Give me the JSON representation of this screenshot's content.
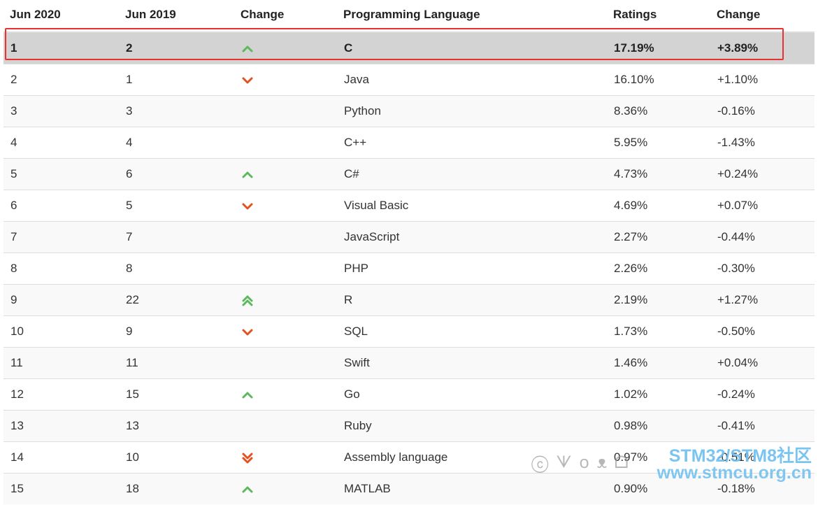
{
  "table": {
    "headers": [
      "Jun 2020",
      "Jun 2019",
      "Change",
      "Programming Language",
      "Ratings",
      "Change"
    ],
    "rows": [
      {
        "rank_2020": "1",
        "rank_2019": "2",
        "trend": "up",
        "language": "C",
        "rating": "17.19%",
        "change": "+3.89%",
        "highlighted": true
      },
      {
        "rank_2020": "2",
        "rank_2019": "1",
        "trend": "down",
        "language": "Java",
        "rating": "16.10%",
        "change": "+1.10%"
      },
      {
        "rank_2020": "3",
        "rank_2019": "3",
        "trend": "none",
        "language": "Python",
        "rating": "8.36%",
        "change": "-0.16%"
      },
      {
        "rank_2020": "4",
        "rank_2019": "4",
        "trend": "none",
        "language": "C++",
        "rating": "5.95%",
        "change": "-1.43%"
      },
      {
        "rank_2020": "5",
        "rank_2019": "6",
        "trend": "up",
        "language": "C#",
        "rating": "4.73%",
        "change": "+0.24%"
      },
      {
        "rank_2020": "6",
        "rank_2019": "5",
        "trend": "down",
        "language": "Visual Basic",
        "rating": "4.69%",
        "change": "+0.07%"
      },
      {
        "rank_2020": "7",
        "rank_2019": "7",
        "trend": "none",
        "language": "JavaScript",
        "rating": "2.27%",
        "change": "-0.44%"
      },
      {
        "rank_2020": "8",
        "rank_2019": "8",
        "trend": "none",
        "language": "PHP",
        "rating": "2.26%",
        "change": "-0.30%"
      },
      {
        "rank_2020": "9",
        "rank_2019": "22",
        "trend": "double-up",
        "language": "R",
        "rating": "2.19%",
        "change": "+1.27%"
      },
      {
        "rank_2020": "10",
        "rank_2019": "9",
        "trend": "down",
        "language": "SQL",
        "rating": "1.73%",
        "change": "-0.50%"
      },
      {
        "rank_2020": "11",
        "rank_2019": "11",
        "trend": "none",
        "language": "Swift",
        "rating": "1.46%",
        "change": "+0.04%"
      },
      {
        "rank_2020": "12",
        "rank_2019": "15",
        "trend": "up",
        "language": "Go",
        "rating": "1.02%",
        "change": "-0.24%"
      },
      {
        "rank_2020": "13",
        "rank_2019": "13",
        "trend": "none",
        "language": "Ruby",
        "rating": "0.98%",
        "change": "-0.41%"
      },
      {
        "rank_2020": "14",
        "rank_2019": "10",
        "trend": "double-down",
        "language": "Assembly language",
        "rating": "0.97%",
        "change": "-0.51%"
      },
      {
        "rank_2020": "15",
        "rank_2019": "18",
        "trend": "up",
        "language": "MATLAB",
        "rating": "0.90%",
        "change": "-0.18%"
      }
    ]
  },
  "colors": {
    "up": "#5cb85c",
    "down": "#e2511f",
    "highlight_border": "#e8322f",
    "highlight_row": "#d3d3d3",
    "watermark": "#6cbef0"
  },
  "watermark": {
    "scribble": "ⓒ ᗐ ꧐ ᴥ ᗝ",
    "brand": "STM32/STM8社区",
    "url": "www.stmcu.org.cn"
  }
}
